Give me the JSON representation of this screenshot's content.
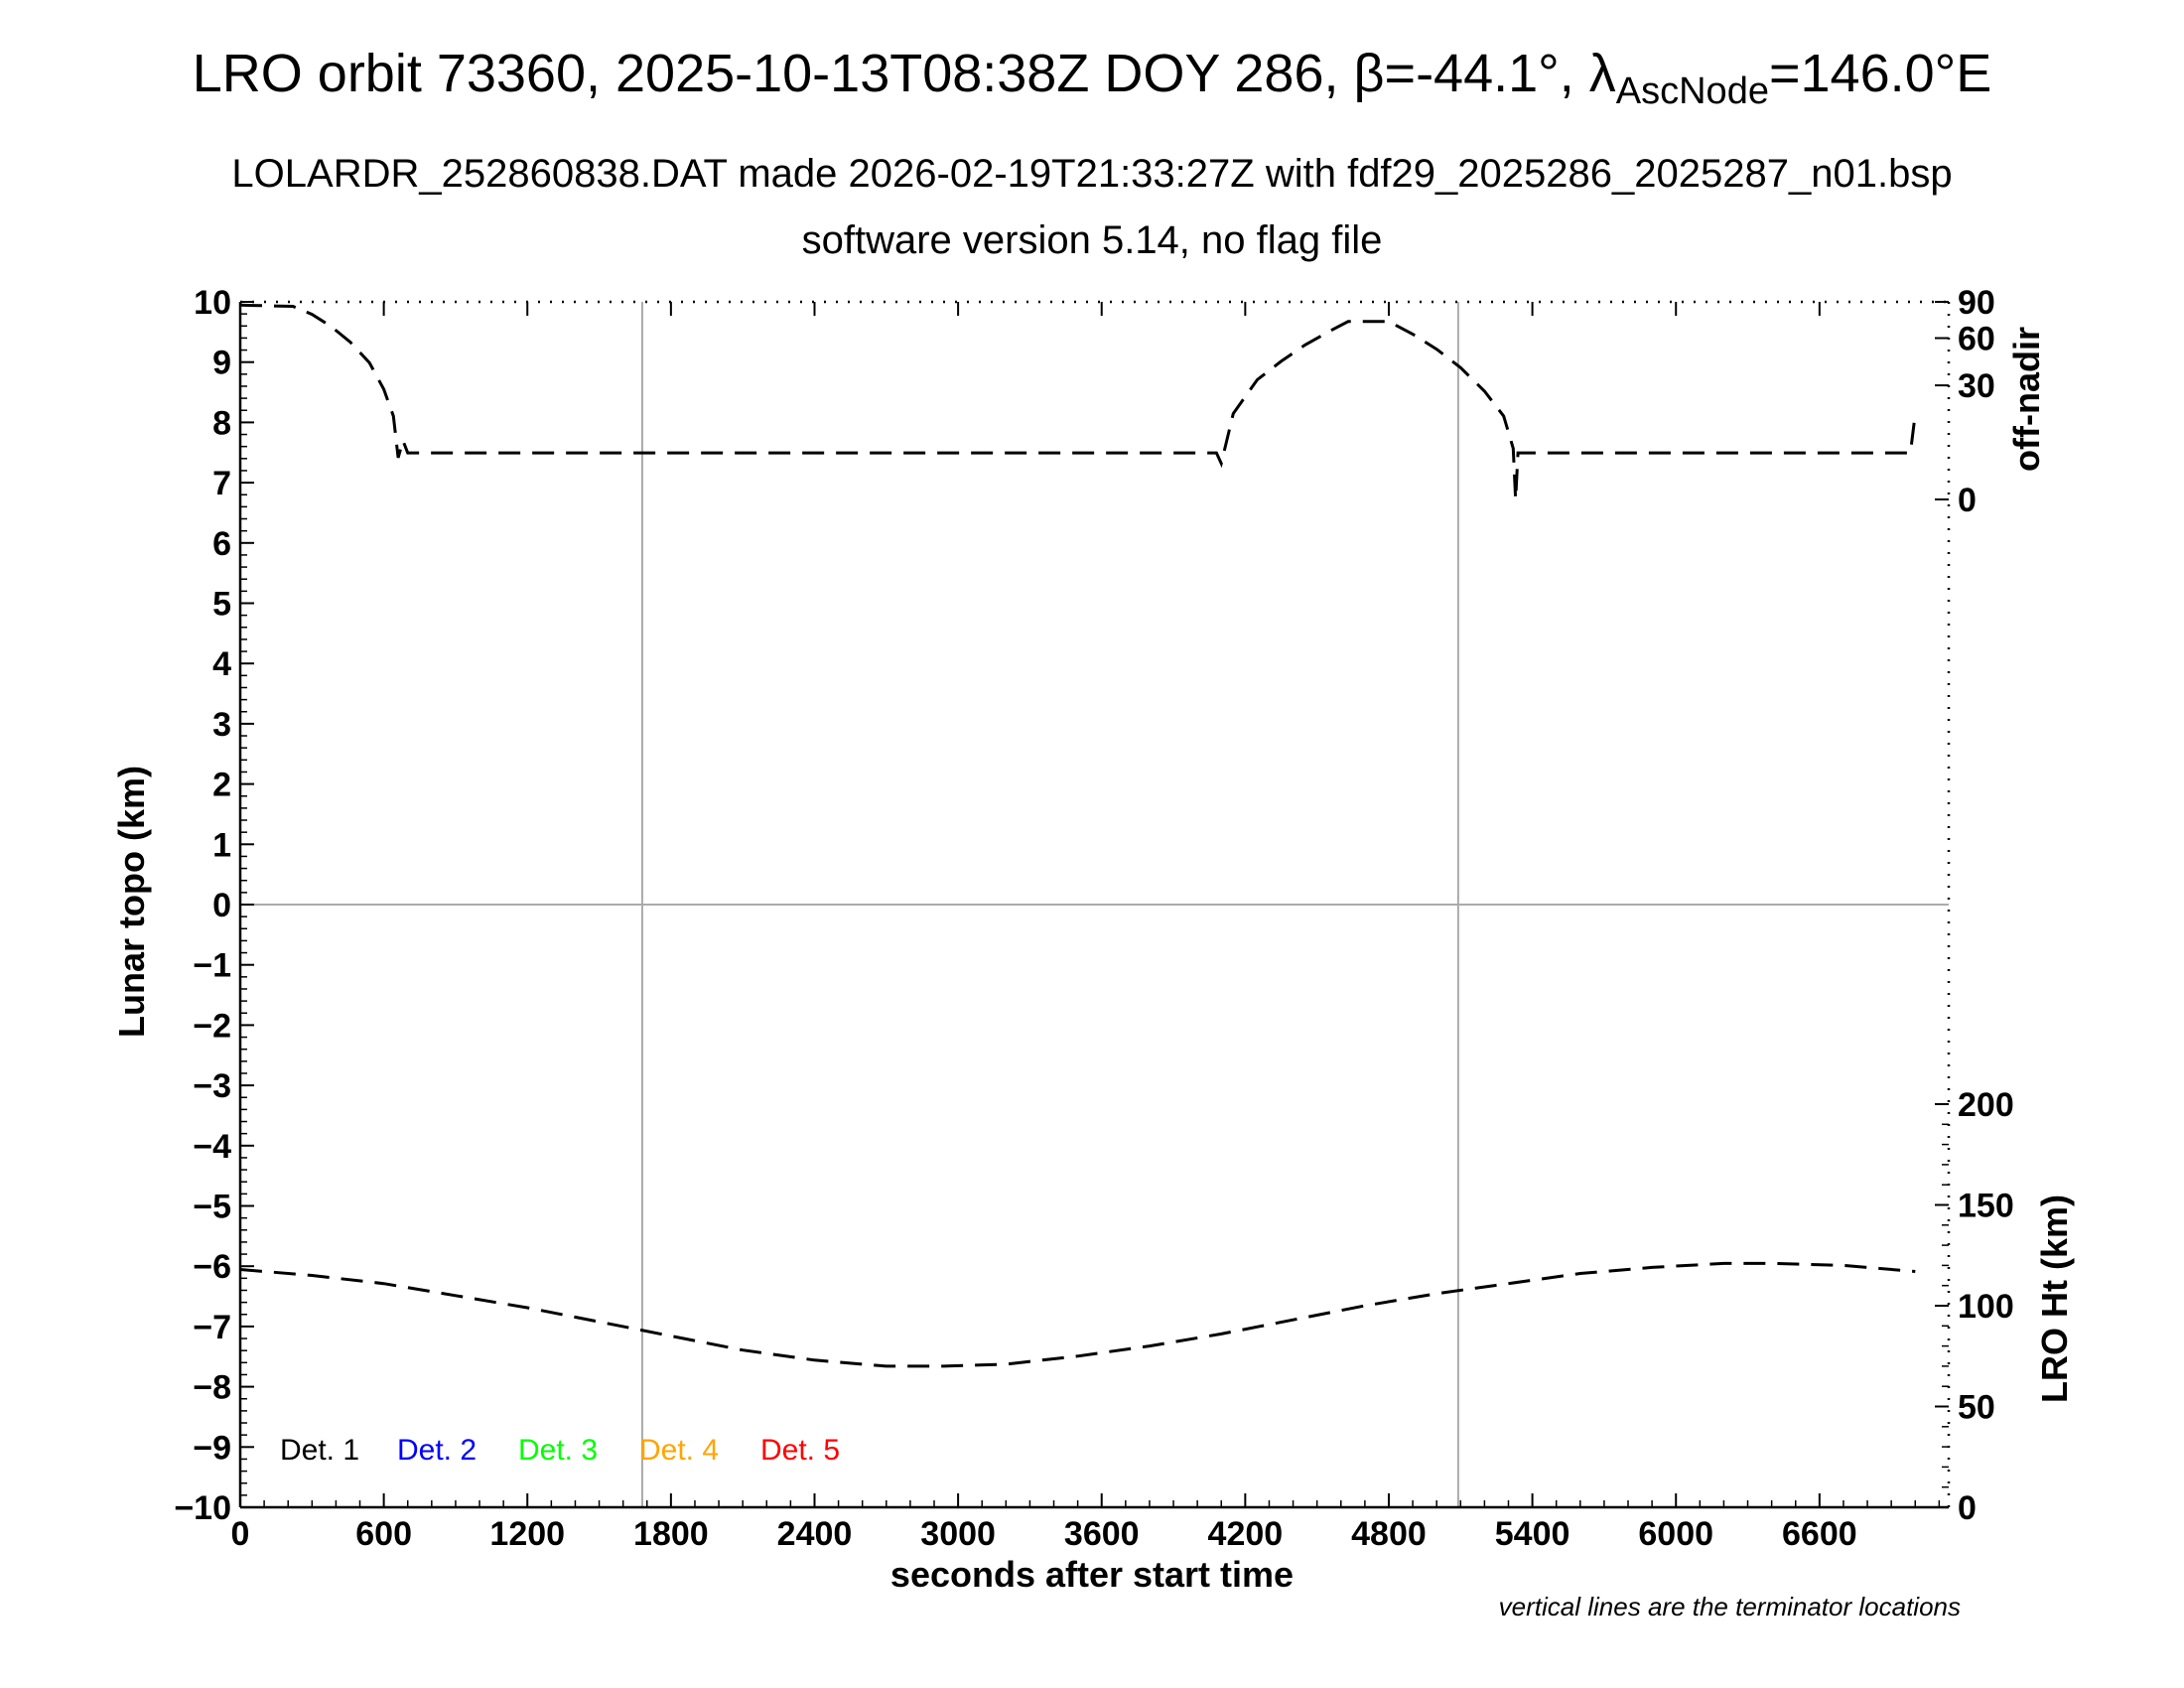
{
  "header": {
    "title_main": "LRO orbit 73360, 2025-10-13T08:38Z DOY 286, β=-44.1°, λ",
    "title_sub": "AscNode",
    "title_end": "=146.0°E",
    "subtitle1": "LOLARDR_252860838.DAT made 2026-02-19T21:33:27Z with fdf29_2025286_2025287_n01.bsp",
    "subtitle2": "software version 5.14, no flag file"
  },
  "footnote": "vertical lines are the terminator locations",
  "chart_data": {
    "type": "line",
    "xlabel": "seconds after start time",
    "ylabel": "Lunar topo (km)",
    "y2_upper_label": "off-nadir",
    "y2_lower_label": "LRO Ht (km)",
    "xlim": [
      0,
      7140
    ],
    "ylim": [
      -10,
      10
    ],
    "x_ticks": [
      0,
      600,
      1200,
      1800,
      2400,
      3000,
      3600,
      4200,
      4800,
      5400,
      6000,
      6600
    ],
    "y_ticks": [
      -10,
      -9,
      -8,
      -7,
      -6,
      -5,
      -4,
      -3,
      -2,
      -1,
      0,
      1,
      2,
      3,
      4,
      5,
      6,
      7,
      8,
      9,
      10
    ],
    "offnadir_ticks": [
      0,
      30,
      60,
      90
    ],
    "height_ticks": [
      0,
      50,
      100,
      150,
      200
    ],
    "terminators": [
      1680,
      5090
    ],
    "grid": "horizontal line at 0 and vertical terminator lines",
    "legend": [
      "Det. 1",
      "Det. 2",
      "Det. 3",
      "Det. 4",
      "Det. 5"
    ],
    "legend_colors": [
      "#000000",
      "#0000ff",
      "#00ff00",
      "#ffa500",
      "#ff0000"
    ],
    "legend_placement": "bottom-left",
    "series": [
      {
        "kind": "off-nadir",
        "axis": "offnadir",
        "x": [
          0,
          220,
          300,
          380,
          460,
          540,
          600,
          640,
          660,
          680,
          700,
          4080,
          4100,
          4150,
          4250,
          4350,
          4450,
          4550,
          4630,
          4800,
          4900,
          5000,
          5100,
          5200,
          5280,
          5320,
          5330,
          5340,
          6980,
          7000
        ],
        "y": [
          87,
          86,
          79,
          69,
          57,
          43,
          28,
          16,
          4,
          8,
          5,
          5,
          3,
          17,
          33,
          44,
          55,
          65,
          73,
          73,
          63,
          52,
          40,
          27,
          16,
          6,
          -1,
          5,
          5,
          17
        ]
      },
      {
        "kind": "LRO height",
        "axis": "height",
        "x": [
          0,
          300,
          600,
          900,
          1200,
          1500,
          1800,
          2100,
          2400,
          2700,
          2940,
          3200,
          3500,
          3800,
          4100,
          4400,
          4700,
          5000,
          5300,
          5600,
          5900,
          6200,
          6400,
          6700,
          7000
        ],
        "y": [
          118,
          115,
          111,
          105,
          99,
          92,
          85,
          78,
          73,
          70,
          70,
          71,
          75,
          80,
          86,
          93,
          100,
          106,
          111,
          116,
          119,
          121,
          121,
          120,
          117
        ]
      }
    ]
  }
}
